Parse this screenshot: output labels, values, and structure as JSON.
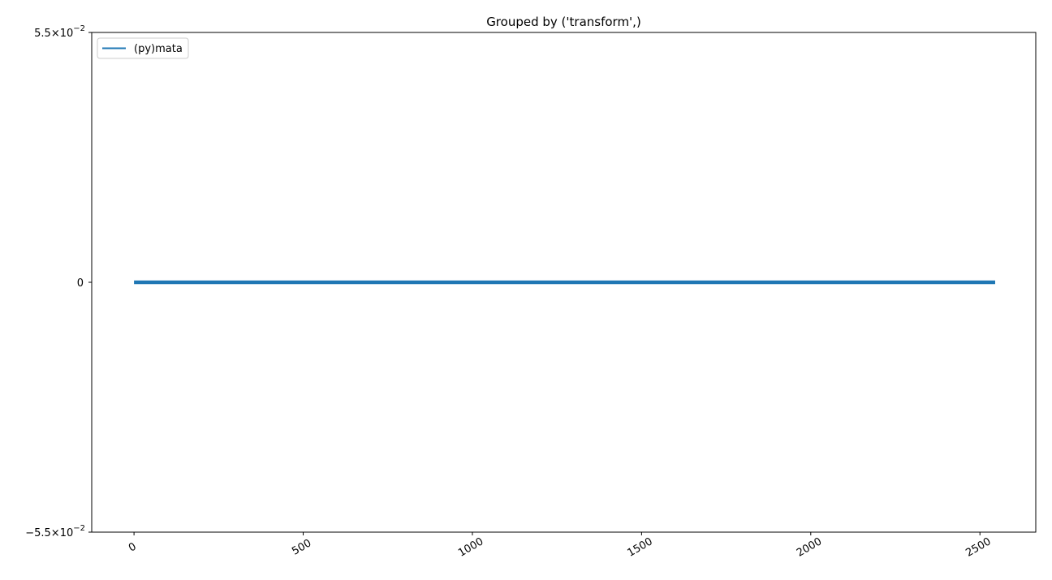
{
  "chart_data": {
    "type": "line",
    "title": "Grouped by ('transform',)",
    "xlabel": "",
    "ylabel": "",
    "xlim": [
      -125,
      2665
    ],
    "ylim": [
      -0.055,
      0.055
    ],
    "x_ticks": [
      0,
      500,
      1000,
      1500,
      2000,
      2500
    ],
    "x_tick_labels": [
      "0",
      "500",
      "1000",
      "1500",
      "2000",
      "2500"
    ],
    "x_tick_rotation_deg": 30,
    "y_ticks": [
      {
        "value": 0.055,
        "mantissa": "5.5",
        "exponent": "−2",
        "zero": false,
        "negative": false
      },
      {
        "value": 0,
        "mantissa": "0",
        "exponent": "",
        "zero": true,
        "negative": false
      },
      {
        "value": -0.055,
        "mantissa": "−5.5",
        "exponent": "−2",
        "zero": false,
        "negative": true
      }
    ],
    "grid": false,
    "legend_position": "top-left",
    "series": [
      {
        "name": "(py)mata",
        "color": "#1f77b4",
        "x": [
          0,
          2545
        ],
        "y": [
          0,
          0
        ]
      }
    ]
  }
}
